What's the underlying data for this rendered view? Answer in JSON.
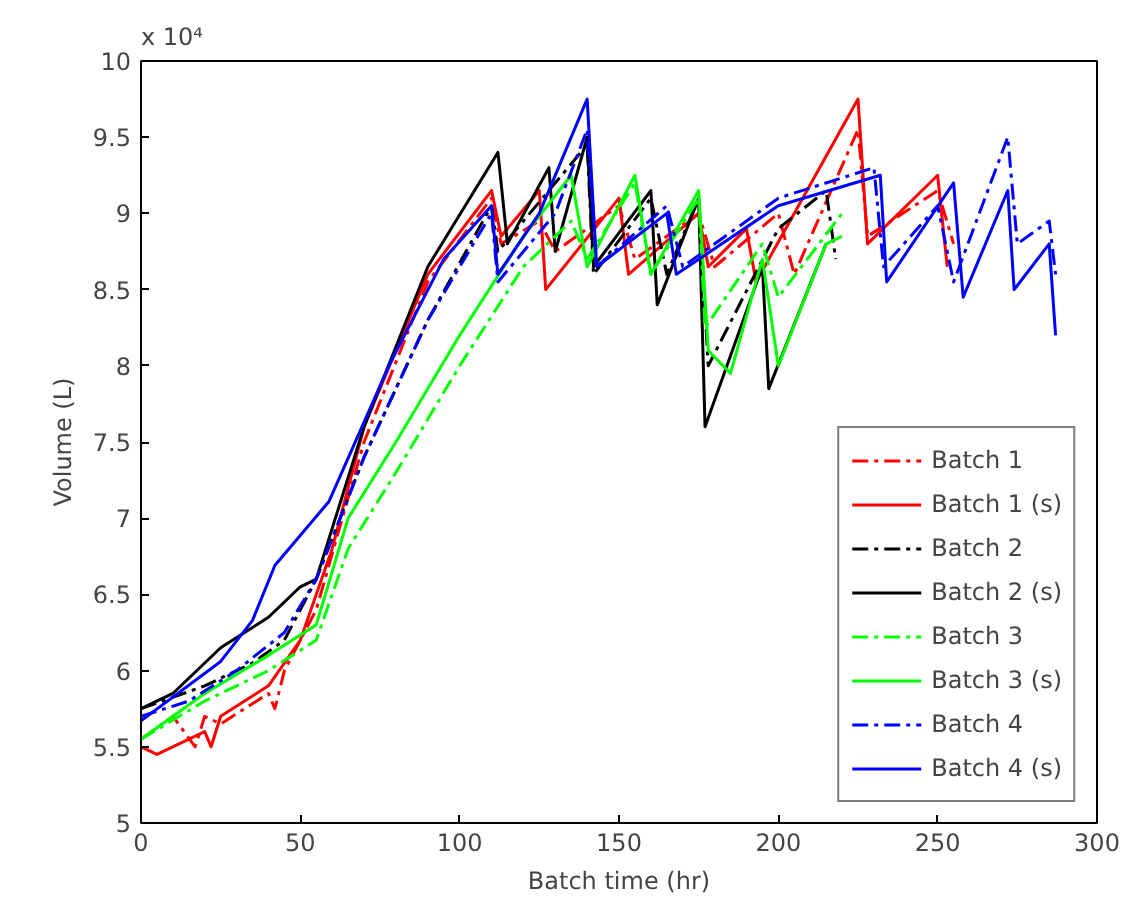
{
  "chart_data": {
    "type": "line",
    "xlabel": "Batch time (hr)",
    "ylabel": "Volume (L)",
    "annotations": [
      "x 10⁴"
    ],
    "xlim": [
      0,
      300
    ],
    "xticks": [
      0,
      50,
      100,
      150,
      200,
      250,
      300
    ],
    "ylim": [
      5,
      10
    ],
    "yticks": [
      5,
      5.5,
      6,
      6.5,
      7,
      7.5,
      8,
      8.5,
      9,
      9.5,
      10
    ],
    "grid": false,
    "legend": "bottom right",
    "series": [
      {
        "name": "Batch 1",
        "color": "#ff0000",
        "line_style": "dashdot",
        "x": [
          0,
          10,
          17,
          20,
          25,
          40,
          42,
          45,
          55,
          70,
          90,
          110,
          113,
          125,
          130,
          150,
          155,
          175,
          180,
          200,
          205,
          225,
          228,
          250,
          255
        ],
        "values": [
          5.55,
          5.7,
          5.5,
          5.7,
          5.65,
          5.85,
          5.75,
          6.0,
          6.4,
          7.5,
          8.55,
          9.1,
          8.8,
          8.95,
          8.75,
          9.05,
          8.7,
          9.0,
          8.65,
          9.0,
          8.6,
          9.55,
          8.85,
          9.15,
          8.8
        ]
      },
      {
        "name": "Batch 1 (s)",
        "color": "#ff0000",
        "line_style": "solid",
        "x": [
          0,
          5,
          20,
          22,
          25,
          40,
          50,
          60,
          70,
          90,
          110,
          113,
          125,
          127,
          150,
          153,
          175,
          178,
          190,
          193,
          225,
          228,
          250,
          253
        ],
        "values": [
          5.5,
          5.45,
          5.6,
          5.5,
          5.7,
          5.9,
          6.2,
          6.8,
          7.6,
          8.6,
          9.15,
          8.85,
          9.15,
          8.5,
          9.1,
          8.6,
          9.0,
          8.65,
          8.9,
          8.55,
          9.75,
          8.8,
          9.25,
          8.65
        ]
      },
      {
        "name": "Batch 2",
        "color": "#000000",
        "line_style": "dashdot",
        "x": [
          0,
          20,
          35,
          45,
          55,
          70,
          90,
          110,
          112,
          140,
          142,
          160,
          165,
          175,
          178,
          200,
          215,
          218
        ],
        "values": [
          5.75,
          5.9,
          6.05,
          6.2,
          6.6,
          7.4,
          8.3,
          9.05,
          8.75,
          9.45,
          8.6,
          9.1,
          8.6,
          9.1,
          8.0,
          8.9,
          9.15,
          8.7
        ]
      },
      {
        "name": "Batch 2 (s)",
        "color": "#000000",
        "line_style": "solid",
        "x": [
          0,
          10,
          25,
          40,
          50,
          55,
          70,
          90,
          112,
          115,
          128,
          130,
          140,
          142,
          160,
          162,
          175,
          177,
          195,
          197,
          215
        ],
        "values": [
          5.75,
          5.85,
          6.15,
          6.35,
          6.55,
          6.6,
          7.6,
          8.65,
          9.4,
          8.8,
          9.3,
          8.75,
          9.5,
          8.65,
          9.15,
          8.4,
          9.1,
          7.6,
          8.65,
          7.85,
          8.8
        ]
      },
      {
        "name": "Batch 3",
        "color": "#00ff00",
        "line_style": "dashdot",
        "x": [
          0,
          20,
          40,
          55,
          65,
          80,
          100,
          120,
          135,
          140,
          155,
          160,
          175,
          177,
          195,
          200,
          220
        ],
        "values": [
          5.55,
          5.8,
          6.0,
          6.2,
          6.8,
          7.3,
          8.0,
          8.65,
          8.95,
          8.7,
          9.2,
          8.6,
          9.1,
          8.25,
          8.8,
          8.45,
          9.0
        ]
      },
      {
        "name": "Batch 3 (s)",
        "color": "#00ff00",
        "line_style": "solid",
        "x": [
          0,
          20,
          40,
          55,
          65,
          80,
          100,
          120,
          135,
          140,
          155,
          160,
          175,
          178,
          185,
          195,
          200,
          215,
          220
        ],
        "values": [
          5.55,
          5.85,
          6.1,
          6.3,
          7.0,
          7.5,
          8.2,
          8.85,
          9.25,
          8.65,
          9.25,
          8.6,
          9.15,
          8.1,
          7.95,
          8.7,
          8.0,
          8.8,
          8.85
        ]
      },
      {
        "name": "Batch 4",
        "color": "#0000ff",
        "line_style": "dashdot",
        "x": [
          0,
          15,
          30,
          45,
          55,
          70,
          90,
          110,
          112,
          130,
          140,
          143,
          165,
          170,
          200,
          230,
          233,
          250,
          255,
          272,
          275,
          285,
          287
        ],
        "values": [
          5.7,
          5.8,
          6.0,
          6.25,
          6.6,
          7.4,
          8.3,
          9.0,
          8.55,
          9.0,
          9.55,
          8.65,
          9.05,
          8.65,
          9.1,
          9.3,
          8.65,
          9.05,
          8.55,
          9.5,
          8.8,
          8.95,
          8.6
        ]
      },
      {
        "name": "Batch 4 (s)",
        "color": "#0000ff",
        "line_style": "solid",
        "x": [
          0,
          25,
          35,
          42,
          59,
          78,
          95,
          110,
          112,
          125,
          140,
          143,
          165,
          168,
          200,
          232,
          234,
          255,
          258,
          272,
          274,
          285,
          287
        ],
        "values": [
          5.67,
          6.06,
          6.33,
          6.69,
          7.11,
          8.01,
          8.7,
          9.05,
          8.6,
          9.0,
          9.75,
          8.65,
          9.0,
          8.6,
          9.05,
          9.25,
          8.55,
          9.2,
          8.45,
          9.15,
          8.5,
          8.8,
          8.2
        ]
      }
    ]
  }
}
